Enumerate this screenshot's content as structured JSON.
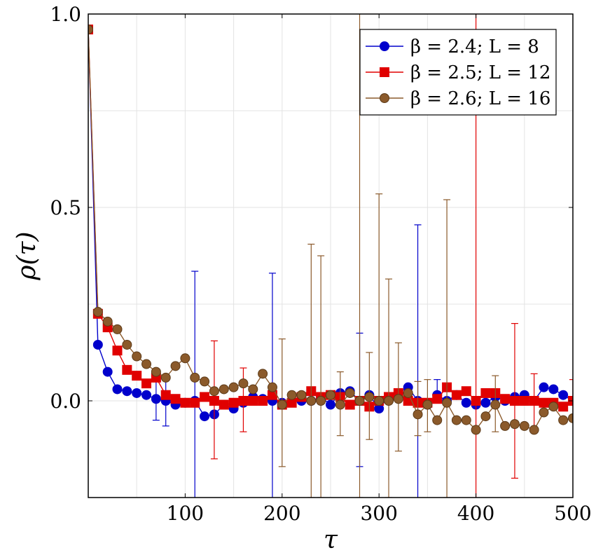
{
  "chart_data": {
    "type": "line",
    "xlabel": "τ",
    "ylabel": "ρ(τ)",
    "xlim": [
      0,
      500
    ],
    "ylim": [
      -0.25,
      1.0
    ],
    "xticks": [
      100,
      200,
      300,
      400,
      500
    ],
    "xtick_labels": [
      "100",
      "200",
      "300",
      "400",
      "500"
    ],
    "yticks": [
      0.0,
      0.5,
      1.0
    ],
    "ytick_labels": [
      "0.0",
      "0.5",
      "1.0"
    ],
    "ygrid_minor": [
      0.25,
      0.75
    ],
    "grid": true,
    "legend_position": "top-right",
    "x": [
      0,
      10,
      20,
      30,
      40,
      50,
      60,
      70,
      80,
      90,
      100,
      110,
      120,
      130,
      140,
      150,
      160,
      170,
      180,
      190,
      200,
      210,
      220,
      230,
      240,
      250,
      260,
      270,
      280,
      290,
      300,
      310,
      320,
      330,
      340,
      350,
      360,
      370,
      380,
      390,
      400,
      410,
      420,
      430,
      440,
      450,
      460,
      470,
      480,
      490,
      500
    ],
    "series": [
      {
        "name": "β = 2.4; L = 8",
        "color": "#0000cc",
        "marker": "circle",
        "values": [
          0.96,
          0.145,
          0.075,
          0.03,
          0.025,
          0.02,
          0.015,
          0.005,
          0.0,
          -0.01,
          -0.005,
          0.0,
          -0.04,
          -0.035,
          -0.01,
          -0.02,
          -0.005,
          0.01,
          0.005,
          0.0,
          -0.005,
          0.0,
          0.0,
          0.0,
          0.01,
          -0.01,
          0.02,
          0.025,
          0.0,
          0.015,
          -0.02,
          0.01,
          0.02,
          0.035,
          0.0,
          -0.01,
          0.015,
          0.0,
          0.015,
          -0.005,
          -0.01,
          -0.005,
          0.01,
          0.0,
          0.01,
          0.015,
          0.0,
          0.035,
          0.03,
          0.015,
          0.0
        ],
        "err_lo": [
          0.96,
          0.145,
          0.075,
          0.03,
          0.025,
          0.02,
          0.015,
          -0.05,
          -0.065,
          -0.01,
          -0.005,
          -0.3,
          -0.04,
          -0.035,
          -0.01,
          -0.02,
          -0.005,
          0.01,
          0.005,
          -0.3,
          -0.005,
          0.0,
          0.0,
          0.0,
          0.01,
          -0.01,
          0.02,
          0.025,
          -0.17,
          0.015,
          -0.02,
          0.01,
          0.02,
          0.035,
          -0.3,
          -0.01,
          0.015,
          0.0,
          0.015,
          -0.005,
          -0.01,
          -0.005,
          0.01,
          0.0,
          0.01,
          0.015,
          0.0,
          0.035,
          0.03,
          0.015,
          0.0
        ],
        "err_hi": [
          0.96,
          0.145,
          0.075,
          0.03,
          0.025,
          0.02,
          0.015,
          0.05,
          0.065,
          -0.01,
          -0.005,
          0.335,
          -0.04,
          -0.035,
          -0.01,
          -0.02,
          -0.005,
          0.01,
          0.005,
          0.33,
          -0.005,
          0.0,
          0.0,
          0.0,
          0.01,
          -0.01,
          0.02,
          0.025,
          0.175,
          0.015,
          -0.02,
          0.01,
          0.02,
          0.035,
          0.455,
          -0.01,
          0.055,
          0.0,
          0.015,
          -0.005,
          -0.01,
          -0.005,
          0.01,
          0.0,
          0.01,
          0.015,
          0.0,
          0.035,
          0.03,
          0.015,
          0.0
        ]
      },
      {
        "name": "β = 2.5; L = 12",
        "color": "#e00000",
        "marker": "square",
        "values": [
          0.96,
          0.225,
          0.19,
          0.13,
          0.08,
          0.065,
          0.045,
          0.06,
          0.015,
          0.005,
          -0.005,
          -0.005,
          0.01,
          0.0,
          -0.01,
          -0.005,
          0.0,
          0.0,
          0.0,
          0.015,
          -0.01,
          -0.005,
          0.01,
          0.025,
          0.01,
          0.015,
          0.01,
          -0.01,
          0.0,
          -0.015,
          0.0,
          0.01,
          0.02,
          0.0,
          -0.005,
          -0.005,
          0.005,
          0.035,
          0.015,
          0.025,
          0.0,
          0.02,
          0.02,
          0.005,
          0.0,
          0.0,
          0.0,
          -0.005,
          -0.005,
          -0.015,
          0.0
        ],
        "err_lo": [
          0.96,
          0.225,
          0.19,
          0.13,
          0.08,
          0.065,
          0.045,
          0.06,
          0.015,
          0.005,
          -0.005,
          -0.005,
          0.01,
          -0.15,
          -0.01,
          -0.005,
          -0.08,
          0.0,
          0.0,
          0.015,
          -0.01,
          -0.005,
          0.01,
          0.025,
          0.01,
          0.015,
          0.01,
          -0.01,
          0.0,
          -0.015,
          0.0,
          0.01,
          0.02,
          0.0,
          -0.005,
          -0.005,
          0.005,
          0.035,
          0.015,
          0.025,
          -0.3,
          0.02,
          0.02,
          0.005,
          -0.2,
          0.0,
          -0.08,
          -0.005,
          -0.005,
          -0.015,
          -0.04
        ],
        "err_hi": [
          0.96,
          0.225,
          0.19,
          0.13,
          0.08,
          0.065,
          0.045,
          0.06,
          0.015,
          0.005,
          -0.005,
          -0.005,
          0.01,
          0.155,
          -0.01,
          -0.005,
          0.085,
          0.0,
          0.0,
          0.015,
          -0.01,
          -0.005,
          0.01,
          0.025,
          0.01,
          0.015,
          0.01,
          -0.01,
          0.0,
          -0.015,
          0.0,
          0.01,
          0.02,
          0.0,
          -0.005,
          -0.005,
          0.005,
          0.035,
          0.015,
          0.025,
          1.1,
          0.02,
          0.02,
          0.005,
          0.2,
          0.0,
          0.07,
          -0.005,
          -0.005,
          -0.015,
          0.055
        ]
      },
      {
        "name": "β = 2.6; L = 16",
        "color": "#8b5a2b",
        "marker": "circle",
        "values": [
          0.96,
          0.23,
          0.205,
          0.185,
          0.145,
          0.115,
          0.095,
          0.075,
          0.06,
          0.09,
          0.11,
          0.06,
          0.05,
          0.025,
          0.03,
          0.035,
          0.045,
          0.03,
          0.07,
          0.035,
          -0.01,
          0.015,
          0.015,
          0.0,
          0.0,
          0.015,
          -0.01,
          0.02,
          0.0,
          0.01,
          0.0,
          0.0,
          0.005,
          0.02,
          -0.035,
          -0.01,
          -0.05,
          -0.005,
          -0.05,
          -0.05,
          -0.075,
          -0.04,
          -0.01,
          -0.065,
          -0.06,
          -0.065,
          -0.075,
          -0.03,
          -0.015,
          -0.05,
          -0.045
        ],
        "err_lo": [
          0.96,
          0.23,
          0.205,
          0.185,
          0.145,
          0.115,
          0.095,
          0.075,
          0.06,
          0.09,
          0.11,
          0.06,
          0.05,
          0.025,
          0.03,
          0.035,
          0.045,
          0.03,
          0.07,
          0.035,
          -0.17,
          0.015,
          0.015,
          -0.25,
          -0.25,
          0.015,
          -0.09,
          0.02,
          -0.25,
          -0.1,
          0.0,
          -0.25,
          -0.13,
          0.02,
          -0.09,
          -0.08,
          -0.05,
          -0.25,
          -0.05,
          -0.05,
          -0.075,
          -0.04,
          -0.08,
          -0.065,
          -0.06,
          -0.065,
          -0.075,
          -0.03,
          -0.015,
          -0.05,
          -0.045
        ],
        "err_hi": [
          0.96,
          0.23,
          0.205,
          0.185,
          0.145,
          0.115,
          0.095,
          0.075,
          0.06,
          0.09,
          0.11,
          0.06,
          0.05,
          0.025,
          0.03,
          0.035,
          0.045,
          0.03,
          0.07,
          0.035,
          0.16,
          0.015,
          0.015,
          0.405,
          0.375,
          0.015,
          0.075,
          0.02,
          1.1,
          0.125,
          0.535,
          0.315,
          0.15,
          0.02,
          0.05,
          0.055,
          -0.05,
          0.52,
          -0.05,
          -0.05,
          -0.075,
          -0.04,
          0.065,
          -0.065,
          -0.06,
          -0.065,
          -0.075,
          -0.03,
          -0.015,
          -0.05,
          -0.045
        ]
      }
    ]
  }
}
